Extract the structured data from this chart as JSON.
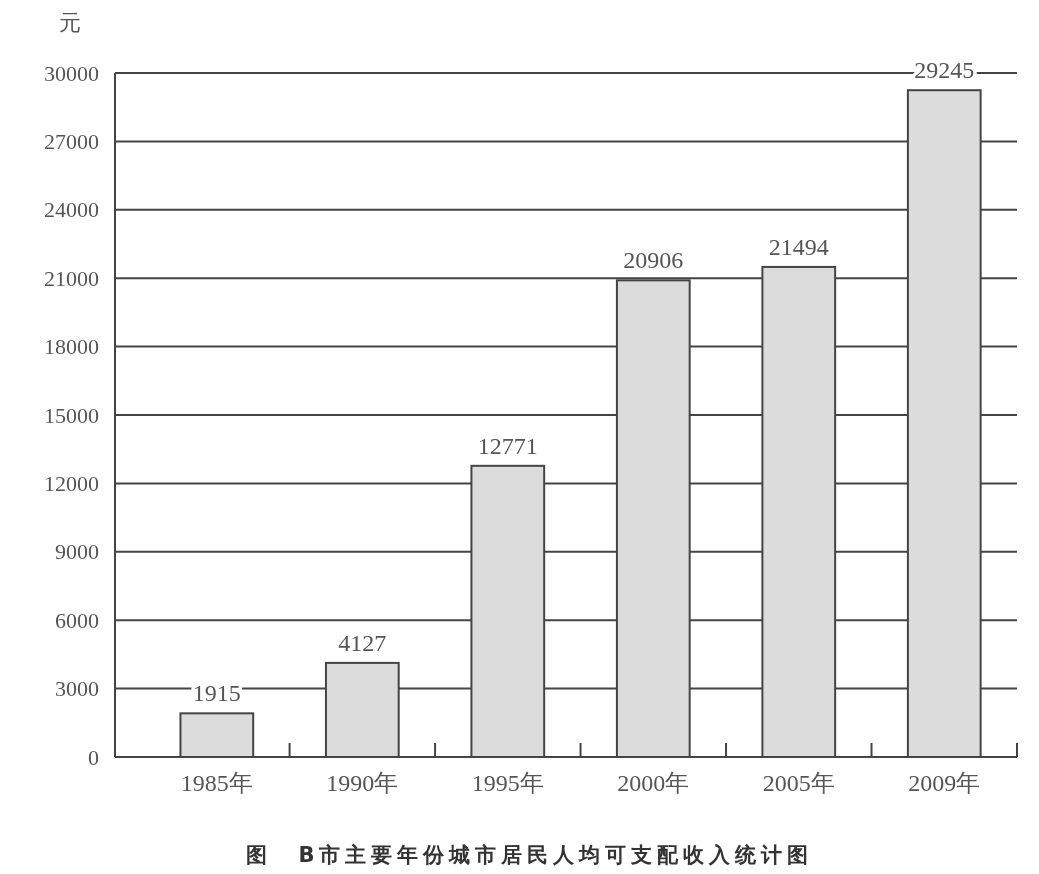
{
  "chart_data": {
    "type": "bar",
    "title": "图　B市主要年份城市居民人均可支配收入统计图",
    "ylabel": "元",
    "categories": [
      "1985年",
      "1990年",
      "1995年",
      "2000年",
      "2005年",
      "2009年"
    ],
    "values": [
      1915,
      4127,
      12771,
      20906,
      21494,
      29245
    ],
    "color": "#dcdcdc",
    "ylim": [
      0,
      30000
    ],
    "yticks": [
      0,
      3000,
      6000,
      9000,
      12000,
      15000,
      18000,
      21000,
      24000,
      27000,
      30000
    ],
    "grid": "y",
    "data_labels": true
  }
}
